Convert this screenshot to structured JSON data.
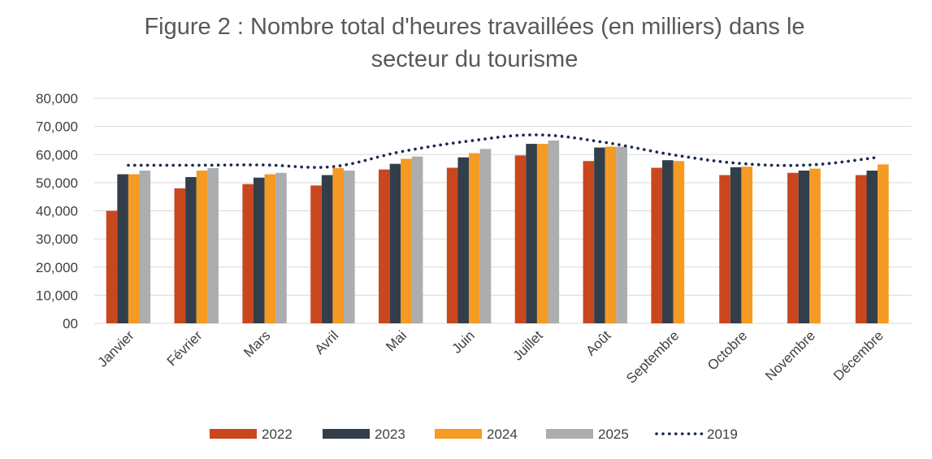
{
  "chart_data": {
    "type": "bar",
    "title_lines": [
      "Figure 2 : Nombre total d'heures travaillées (en milliers) dans le",
      "secteur du tourisme"
    ],
    "xlabel": "",
    "ylabel": "",
    "ylim": [
      0,
      80000
    ],
    "y_ticks": [
      0,
      10000,
      20000,
      30000,
      40000,
      50000,
      60000,
      70000,
      80000
    ],
    "y_tick_labels": [
      "00",
      "10,000",
      "20,000",
      "30,000",
      "40,000",
      "50,000",
      "60,000",
      "70,000",
      "80,000"
    ],
    "grid": true,
    "legend_position": "bottom",
    "categories": [
      "Janvier",
      "Février",
      "Mars",
      "Avril",
      "Mai",
      "Juin",
      "Juillet",
      "Août",
      "Septembre",
      "Octobre",
      "Novembre",
      "Décembre"
    ],
    "series": [
      {
        "name": "2022",
        "kind": "bar",
        "color": "#C9471E",
        "values": [
          40000,
          48000,
          49500,
          49000,
          54700,
          55300,
          59700,
          57700,
          55300,
          52700,
          53500,
          52700
        ]
      },
      {
        "name": "2023",
        "kind": "bar",
        "color": "#323F4B",
        "values": [
          53000,
          52000,
          51800,
          52700,
          56700,
          59000,
          63800,
          62500,
          58000,
          55500,
          54300,
          54300
        ]
      },
      {
        "name": "2024",
        "kind": "bar",
        "color": "#F59A23",
        "values": [
          53000,
          54300,
          53000,
          55200,
          58500,
          60500,
          63800,
          62800,
          57700,
          55700,
          55000,
          56500
        ]
      },
      {
        "name": "2025",
        "kind": "bar",
        "color": "#ABADAF",
        "values": [
          54300,
          55200,
          53500,
          54300,
          59300,
          62000,
          65000,
          62800,
          null,
          null,
          null,
          null
        ]
      },
      {
        "name": "2019",
        "kind": "dotted-line",
        "color": "#1B2A4E",
        "values": [
          56200,
          56200,
          56300,
          55700,
          61000,
          64800,
          67000,
          64300,
          59900,
          56800,
          56300,
          59000
        ]
      }
    ]
  }
}
